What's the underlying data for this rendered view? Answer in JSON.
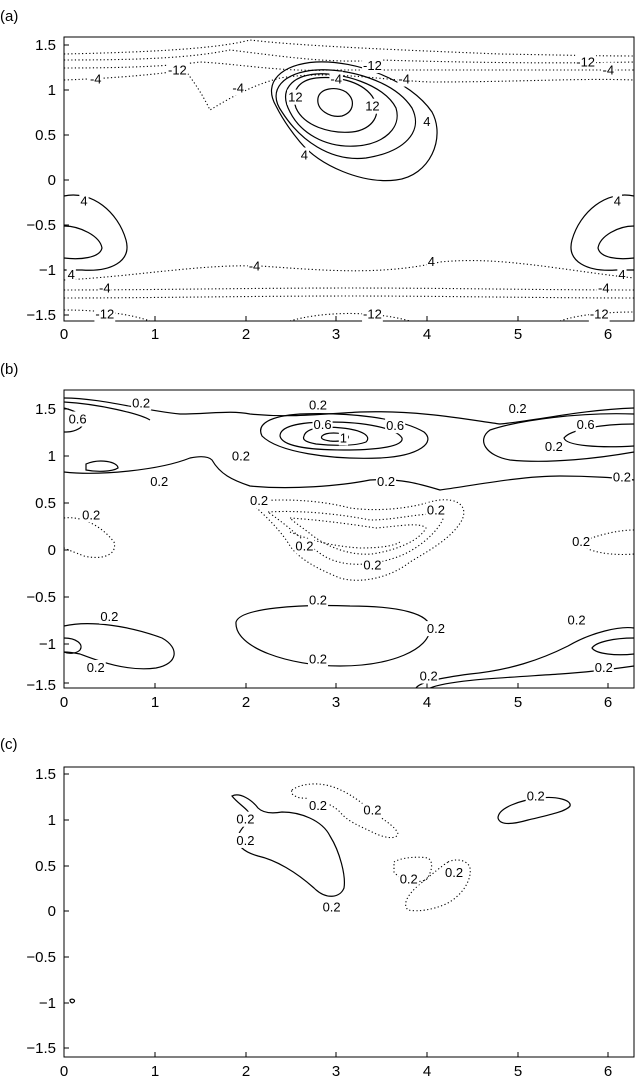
{
  "chart_data": [
    {
      "panel": "(a)",
      "type": "contour",
      "xticks": [
        "0",
        "1",
        "2",
        "3",
        "4",
        "5",
        "6"
      ],
      "yticks": [
        "1.5",
        "1",
        "0.5",
        "0",
        "−0.5",
        "−1",
        "−1.5"
      ],
      "xlim": [
        0,
        6.283
      ],
      "ylim": [
        -1.571,
        1.571
      ],
      "solid_contours": "positive",
      "dotted_contours": "negative",
      "contour_labels": [
        {
          "text": "-12",
          "x": 1.25,
          "y": 1.2
        },
        {
          "text": "-12",
          "x": 3.4,
          "y": 1.25
        },
        {
          "text": "-12",
          "x": 5.75,
          "y": 1.29
        },
        {
          "text": "-4",
          "x": 0.35,
          "y": 1.1
        },
        {
          "text": "-4",
          "x": 1.92,
          "y": 1.0
        },
        {
          "text": "-4",
          "x": 3.0,
          "y": 1.1
        },
        {
          "text": "-4",
          "x": 3.75,
          "y": 1.1
        },
        {
          "text": "-4",
          "x": 6.0,
          "y": 1.2
        },
        {
          "text": "12",
          "x": 2.55,
          "y": 0.9
        },
        {
          "text": "12",
          "x": 3.4,
          "y": 0.8
        },
        {
          "text": "4",
          "x": 4.0,
          "y": 0.63
        },
        {
          "text": "4",
          "x": 2.65,
          "y": 0.26
        },
        {
          "text": "4",
          "x": 0.22,
          "y": -0.25
        },
        {
          "text": "4",
          "x": 6.1,
          "y": -0.25
        },
        {
          "text": "4",
          "x": 0.08,
          "y": -1.06
        },
        {
          "text": "4",
          "x": 6.15,
          "y": -1.06
        },
        {
          "text": "-4",
          "x": 2.1,
          "y": -0.97
        },
        {
          "text": "4",
          "x": 4.05,
          "y": -0.92
        },
        {
          "text": "-4",
          "x": 0.45,
          "y": -1.21
        },
        {
          "text": "-4",
          "x": 5.95,
          "y": -1.21
        },
        {
          "text": "-12",
          "x": 0.45,
          "y": -1.5
        },
        {
          "text": "-12",
          "x": 3.4,
          "y": -1.5
        },
        {
          "text": "-12",
          "x": 5.9,
          "y": -1.5
        }
      ]
    },
    {
      "panel": "(b)",
      "type": "contour",
      "xticks": [
        "0",
        "1",
        "2",
        "3",
        "4",
        "5",
        "6"
      ],
      "yticks": [
        "1.5",
        "1",
        "0.5",
        "0",
        "−0.5",
        "−1",
        "−1.5"
      ],
      "xlim": [
        0,
        6.283
      ],
      "ylim": [
        -1.571,
        1.571
      ],
      "solid_contours": "positive",
      "dotted_contours": "negative",
      "contour_labels": [
        {
          "text": "0.2",
          "x": 0.85,
          "y": 1.43
        },
        {
          "text": "0.6",
          "x": 0.15,
          "y": 1.26
        },
        {
          "text": "0.2",
          "x": 2.8,
          "y": 1.41
        },
        {
          "text": "0.6",
          "x": 2.85,
          "y": 1.2
        },
        {
          "text": "0.6",
          "x": 3.65,
          "y": 1.19
        },
        {
          "text": "1",
          "x": 3.08,
          "y": 1.06
        },
        {
          "text": "0.2",
          "x": 5.0,
          "y": 1.37
        },
        {
          "text": "0.6",
          "x": 5.75,
          "y": 1.2
        },
        {
          "text": "0.2",
          "x": 5.4,
          "y": 0.97
        },
        {
          "text": "0.2",
          "x": 1.95,
          "y": 0.87
        },
        {
          "text": "0.2",
          "x": 1.05,
          "y": 0.6
        },
        {
          "text": "0.2",
          "x": 3.55,
          "y": 0.6
        },
        {
          "text": "0.2",
          "x": 6.15,
          "y": 0.65
        },
        {
          "text": "0.2",
          "x": 2.15,
          "y": 0.4
        },
        {
          "text": "0.2",
          "x": 4.1,
          "y": 0.3
        },
        {
          "text": "0.2",
          "x": 0.3,
          "y": 0.25
        },
        {
          "text": "0.2",
          "x": 2.65,
          "y": -0.08
        },
        {
          "text": "0.2",
          "x": 3.4,
          "y": -0.28
        },
        {
          "text": "0.2",
          "x": 5.7,
          "y": -0.03
        },
        {
          "text": "0.2",
          "x": 2.8,
          "y": -0.65
        },
        {
          "text": "0.2",
          "x": 0.5,
          "y": -0.82
        },
        {
          "text": "0.2",
          "x": 5.65,
          "y": -0.86
        },
        {
          "text": "0.2",
          "x": 4.1,
          "y": -0.95
        },
        {
          "text": "0.2",
          "x": 0.35,
          "y": -1.36
        },
        {
          "text": "0.2",
          "x": 2.8,
          "y": -1.27
        },
        {
          "text": "0.2",
          "x": 5.95,
          "y": -1.36
        },
        {
          "text": "0.2",
          "x": 4.02,
          "y": -1.45
        }
      ]
    },
    {
      "panel": "(c)",
      "type": "contour",
      "xticks": [
        "0",
        "1",
        "2",
        "3",
        "4",
        "5",
        "6"
      ],
      "yticks": [
        "1.5",
        "1",
        "0.5",
        "0",
        "−0.5",
        "−1",
        "−1.5"
      ],
      "xlim": [
        0,
        6.283
      ],
      "ylim": [
        -1.571,
        1.571
      ],
      "solid_contours": "positive",
      "dotted_contours": "negative",
      "contour_labels": [
        {
          "text": "0.2",
          "x": 2.0,
          "y": 1.0
        },
        {
          "text": "0.2",
          "x": 2.0,
          "y": 0.77
        },
        {
          "text": "0.2",
          "x": 2.8,
          "y": 1.15
        },
        {
          "text": "0.2",
          "x": 3.4,
          "y": 1.1
        },
        {
          "text": "0.2",
          "x": 5.2,
          "y": 1.25
        },
        {
          "text": "0.2",
          "x": 3.8,
          "y": 0.35
        },
        {
          "text": "0.2",
          "x": 4.3,
          "y": 0.42
        },
        {
          "text": "0.2",
          "x": 2.95,
          "y": 0.05
        }
      ]
    }
  ]
}
